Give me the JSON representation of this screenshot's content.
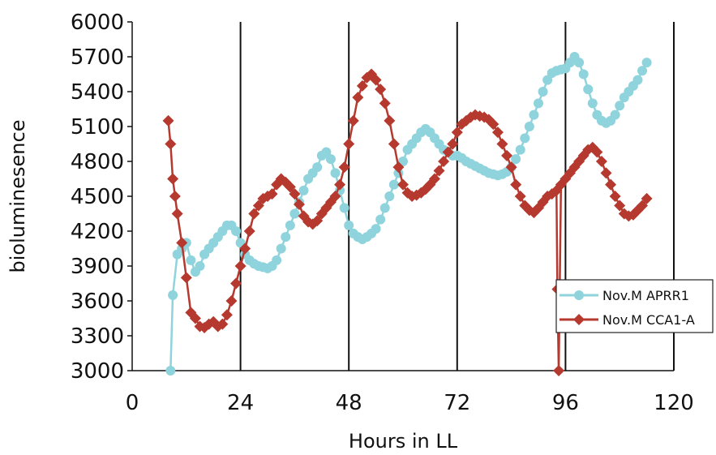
{
  "chart_data": {
    "type": "line",
    "title": "",
    "xlabel": "Hours in LL",
    "ylabel": "bioluminesence",
    "xlim": [
      0,
      120
    ],
    "ylim": [
      3000,
      6000
    ],
    "x_ticks": [
      0,
      24,
      48,
      72,
      96,
      120
    ],
    "x_tick_labels": [
      "0",
      "24",
      "48",
      "72",
      "96",
      "120"
    ],
    "y_ticks": [
      3000,
      3300,
      3600,
      3900,
      4200,
      4500,
      4800,
      5100,
      5400,
      5700,
      6000
    ],
    "y_tick_labels": [
      "3000",
      "3300",
      "3600",
      "3900",
      "4200",
      "4500",
      "4800",
      "5100",
      "5400",
      "5700",
      "6000"
    ],
    "vertical_gridlines_at": [
      24,
      48,
      72,
      96,
      120
    ],
    "legend_position": "lower-right",
    "series": [
      {
        "name": "Nov.M APRR1",
        "color": "#8fd3dc",
        "marker": "circle",
        "x": [
          8.5,
          9,
          10,
          11,
          12,
          13,
          14,
          15,
          16,
          17,
          18,
          19,
          20,
          21,
          22,
          23,
          24,
          25,
          26,
          27,
          28,
          29,
          30,
          31,
          32,
          33,
          34,
          35,
          36,
          37,
          38,
          39,
          40,
          41,
          42,
          43,
          44,
          45,
          46,
          47,
          48,
          49,
          50,
          51,
          52,
          53,
          54,
          55,
          56,
          57,
          58,
          59,
          60,
          61,
          62,
          63,
          64,
          65,
          66,
          67,
          68,
          69,
          70,
          71,
          72,
          73,
          74,
          75,
          76,
          77,
          78,
          79,
          80,
          81,
          82,
          83,
          84,
          85,
          86,
          87,
          88,
          89,
          90,
          91,
          92,
          93,
          94,
          95,
          96,
          97,
          98,
          99,
          100,
          101,
          102,
          103,
          104,
          105,
          106,
          107,
          108,
          109,
          110,
          111,
          112,
          113,
          114
        ],
        "y": [
          3000,
          3650,
          4000,
          4050,
          4100,
          3950,
          3850,
          3900,
          4000,
          4050,
          4100,
          4150,
          4200,
          4250,
          4250,
          4200,
          4100,
          4000,
          3950,
          3920,
          3900,
          3890,
          3880,
          3900,
          3950,
          4050,
          4150,
          4250,
          4350,
          4450,
          4550,
          4650,
          4700,
          4750,
          4850,
          4880,
          4820,
          4700,
          4550,
          4400,
          4250,
          4180,
          4150,
          4130,
          4150,
          4180,
          4220,
          4300,
          4400,
          4500,
          4600,
          4700,
          4800,
          4900,
          4950,
          5000,
          5050,
          5080,
          5050,
          5000,
          4950,
          4900,
          4880,
          4850,
          4850,
          4830,
          4800,
          4780,
          4760,
          4740,
          4720,
          4700,
          4690,
          4680,
          4690,
          4710,
          4750,
          4820,
          4900,
          5000,
          5100,
          5200,
          5300,
          5400,
          5500,
          5560,
          5580,
          5590,
          5600,
          5650,
          5700,
          5650,
          5550,
          5420,
          5300,
          5200,
          5150,
          5130,
          5150,
          5200,
          5280,
          5350,
          5400,
          5450,
          5500,
          5580,
          5650
        ]
      },
      {
        "name": "Nov.M CCA1-A",
        "color": "#b5392e",
        "marker": "diamond",
        "x": [
          8,
          8.5,
          9,
          9.5,
          10,
          11,
          12,
          13,
          14,
          15,
          16,
          17,
          18,
          19,
          20,
          21,
          22,
          23,
          24,
          25,
          26,
          27,
          28,
          29,
          30,
          31,
          32,
          33,
          34,
          35,
          36,
          37,
          38,
          39,
          40,
          41,
          42,
          43,
          44,
          45,
          46,
          47,
          48,
          49,
          50,
          51,
          52,
          53,
          54,
          55,
          56,
          57,
          58,
          59,
          60,
          61,
          62,
          63,
          64,
          65,
          66,
          67,
          68,
          69,
          70,
          71,
          72,
          73,
          74,
          75,
          76,
          77,
          78,
          79,
          80,
          81,
          82,
          83,
          84,
          85,
          86,
          87,
          88,
          89,
          90,
          91,
          92,
          93,
          94,
          94.2,
          94.5,
          95,
          96,
          97,
          98,
          99,
          100,
          101,
          102,
          103,
          104,
          105,
          106,
          107,
          108,
          109,
          110,
          111,
          112,
          113,
          114
        ],
        "y": [
          5150,
          4950,
          4650,
          4500,
          4350,
          4100,
          3800,
          3500,
          3450,
          3380,
          3370,
          3400,
          3420,
          3380,
          3400,
          3480,
          3600,
          3750,
          3900,
          4050,
          4200,
          4350,
          4420,
          4480,
          4500,
          4520,
          4600,
          4650,
          4620,
          4580,
          4520,
          4430,
          4330,
          4280,
          4260,
          4290,
          4350,
          4400,
          4450,
          4500,
          4600,
          4750,
          4950,
          5150,
          5350,
          5450,
          5520,
          5550,
          5500,
          5420,
          5300,
          5150,
          4950,
          4750,
          4600,
          4530,
          4500,
          4510,
          4530,
          4560,
          4600,
          4650,
          4720,
          4800,
          4880,
          4950,
          5050,
          5120,
          5150,
          5180,
          5200,
          5190,
          5180,
          5160,
          5120,
          5050,
          4950,
          4850,
          4750,
          4600,
          4500,
          4420,
          4380,
          4360,
          4400,
          4450,
          4500,
          4520,
          4550,
          3700,
          3000,
          4600,
          4650,
          4700,
          4750,
          4800,
          4850,
          4900,
          4920,
          4880,
          4800,
          4700,
          4600,
          4500,
          4420,
          4350,
          4330,
          4340,
          4380,
          4420,
          4480
        ]
      }
    ]
  }
}
